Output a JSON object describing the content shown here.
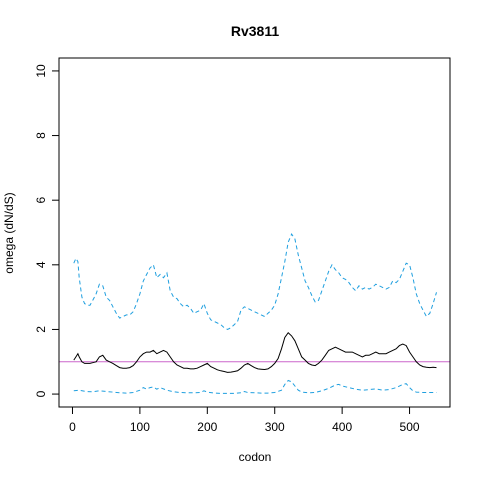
{
  "chart_data": {
    "type": "line",
    "title": "Rv3811",
    "xlabel": "codon",
    "ylabel": "omega (dN/dS)",
    "xlim": [
      -20,
      560
    ],
    "ylim": [
      -0.4,
      10.4
    ],
    "x_ticks": [
      0,
      100,
      200,
      300,
      400,
      500
    ],
    "y_ticks": [
      0,
      2,
      4,
      6,
      8,
      10
    ],
    "grid": false,
    "legend": "none",
    "reference_line": {
      "y": 1,
      "color": "#cc66cc"
    },
    "colors": {
      "omega": "#000000",
      "bounds": "#1f9fdf"
    },
    "series": [
      {
        "role": "upper",
        "style": "dashed",
        "x": [
          2,
          5,
          8,
          10,
          14,
          18,
          22,
          26,
          30,
          35,
          40,
          45,
          50,
          55,
          60,
          65,
          70,
          75,
          80,
          85,
          90,
          95,
          100,
          105,
          110,
          115,
          120,
          125,
          130,
          135,
          140,
          145,
          150,
          155,
          160,
          165,
          170,
          175,
          180,
          185,
          190,
          195,
          200,
          205,
          210,
          215,
          220,
          225,
          230,
          235,
          240,
          245,
          250,
          255,
          260,
          265,
          270,
          275,
          280,
          285,
          290,
          295,
          300,
          305,
          310,
          315,
          320,
          325,
          330,
          335,
          340,
          345,
          350,
          355,
          360,
          365,
          370,
          375,
          380,
          385,
          390,
          395,
          400,
          405,
          410,
          415,
          420,
          425,
          430,
          435,
          440,
          445,
          450,
          455,
          460,
          465,
          470,
          475,
          480,
          485,
          490,
          495,
          500,
          505,
          510,
          515,
          520,
          525,
          530,
          535,
          540
        ],
        "y": [
          4.05,
          4.2,
          4.1,
          3.6,
          3.0,
          2.8,
          2.75,
          2.75,
          2.9,
          3.1,
          3.4,
          3.35,
          3.0,
          2.9,
          2.7,
          2.5,
          2.35,
          2.4,
          2.45,
          2.45,
          2.55,
          2.8,
          3.1,
          3.5,
          3.7,
          3.9,
          4.0,
          3.6,
          3.7,
          3.6,
          3.75,
          3.2,
          3.0,
          2.95,
          2.8,
          2.7,
          2.75,
          2.65,
          2.5,
          2.55,
          2.6,
          2.8,
          2.5,
          2.3,
          2.25,
          2.2,
          2.15,
          2.05,
          2.0,
          2.05,
          2.15,
          2.25,
          2.6,
          2.7,
          2.65,
          2.6,
          2.55,
          2.5,
          2.45,
          2.4,
          2.5,
          2.6,
          2.75,
          3.1,
          3.6,
          4.1,
          4.7,
          4.95,
          4.8,
          4.3,
          3.9,
          3.5,
          3.3,
          3.05,
          2.85,
          2.9,
          3.2,
          3.5,
          3.8,
          4.0,
          3.85,
          3.75,
          3.6,
          3.55,
          3.45,
          3.3,
          3.2,
          3.35,
          3.25,
          3.3,
          3.25,
          3.3,
          3.4,
          3.35,
          3.3,
          3.25,
          3.3,
          3.5,
          3.45,
          3.55,
          3.8,
          4.05,
          4.0,
          3.6,
          3.1,
          2.8,
          2.6,
          2.4,
          2.5,
          2.8,
          3.15
        ]
      },
      {
        "role": "omega",
        "style": "solid",
        "x": [
          2,
          5,
          8,
          10,
          14,
          18,
          22,
          26,
          30,
          35,
          40,
          45,
          50,
          55,
          60,
          65,
          70,
          75,
          80,
          85,
          90,
          95,
          100,
          105,
          110,
          115,
          120,
          125,
          130,
          135,
          140,
          145,
          150,
          155,
          160,
          165,
          170,
          175,
          180,
          185,
          190,
          195,
          200,
          205,
          210,
          215,
          220,
          225,
          230,
          235,
          240,
          245,
          250,
          255,
          260,
          265,
          270,
          275,
          280,
          285,
          290,
          295,
          300,
          305,
          310,
          315,
          320,
          325,
          330,
          335,
          340,
          345,
          350,
          355,
          360,
          365,
          370,
          375,
          380,
          385,
          390,
          395,
          400,
          405,
          410,
          415,
          420,
          425,
          430,
          435,
          440,
          445,
          450,
          455,
          460,
          465,
          470,
          475,
          480,
          485,
          490,
          495,
          500,
          505,
          510,
          515,
          520,
          525,
          530,
          535,
          540
        ],
        "y": [
          1.05,
          1.15,
          1.25,
          1.15,
          1.0,
          0.95,
          0.95,
          0.95,
          0.97,
          1.0,
          1.15,
          1.2,
          1.05,
          1.0,
          0.95,
          0.88,
          0.82,
          0.8,
          0.8,
          0.82,
          0.88,
          1.0,
          1.15,
          1.25,
          1.3,
          1.3,
          1.35,
          1.25,
          1.3,
          1.35,
          1.3,
          1.15,
          1.0,
          0.9,
          0.85,
          0.8,
          0.8,
          0.78,
          0.78,
          0.8,
          0.85,
          0.9,
          0.95,
          0.85,
          0.8,
          0.75,
          0.72,
          0.7,
          0.67,
          0.68,
          0.7,
          0.72,
          0.8,
          0.9,
          0.95,
          0.88,
          0.82,
          0.78,
          0.77,
          0.76,
          0.78,
          0.85,
          0.95,
          1.1,
          1.4,
          1.75,
          1.9,
          1.8,
          1.65,
          1.4,
          1.15,
          1.05,
          0.95,
          0.9,
          0.88,
          0.95,
          1.05,
          1.2,
          1.35,
          1.4,
          1.45,
          1.4,
          1.35,
          1.3,
          1.3,
          1.3,
          1.25,
          1.2,
          1.15,
          1.2,
          1.2,
          1.25,
          1.3,
          1.25,
          1.25,
          1.25,
          1.3,
          1.35,
          1.4,
          1.5,
          1.55,
          1.5,
          1.3,
          1.15,
          1.0,
          0.9,
          0.85,
          0.83,
          0.82,
          0.83,
          0.82
        ]
      },
      {
        "role": "lower",
        "style": "dashed",
        "x": [
          2,
          10,
          20,
          30,
          40,
          50,
          60,
          70,
          80,
          90,
          100,
          105,
          110,
          115,
          120,
          125,
          130,
          140,
          150,
          160,
          170,
          180,
          190,
          195,
          200,
          210,
          220,
          230,
          240,
          250,
          255,
          260,
          270,
          280,
          290,
          300,
          310,
          315,
          320,
          325,
          330,
          335,
          340,
          350,
          360,
          370,
          380,
          390,
          395,
          400,
          410,
          420,
          430,
          440,
          450,
          460,
          470,
          480,
          490,
          495,
          500,
          505,
          510,
          520,
          530,
          540
        ],
        "y": [
          0.1,
          0.12,
          0.08,
          0.07,
          0.1,
          0.08,
          0.06,
          0.04,
          0.03,
          0.05,
          0.12,
          0.2,
          0.15,
          0.2,
          0.22,
          0.15,
          0.2,
          0.12,
          0.07,
          0.05,
          0.04,
          0.04,
          0.05,
          0.1,
          0.06,
          0.03,
          0.02,
          0.02,
          0.02,
          0.04,
          0.08,
          0.05,
          0.04,
          0.03,
          0.03,
          0.05,
          0.12,
          0.3,
          0.42,
          0.38,
          0.25,
          0.12,
          0.06,
          0.04,
          0.05,
          0.1,
          0.18,
          0.28,
          0.3,
          0.25,
          0.2,
          0.15,
          0.12,
          0.14,
          0.16,
          0.12,
          0.14,
          0.2,
          0.3,
          0.32,
          0.2,
          0.1,
          0.06,
          0.05,
          0.05,
          0.05
        ]
      }
    ]
  }
}
